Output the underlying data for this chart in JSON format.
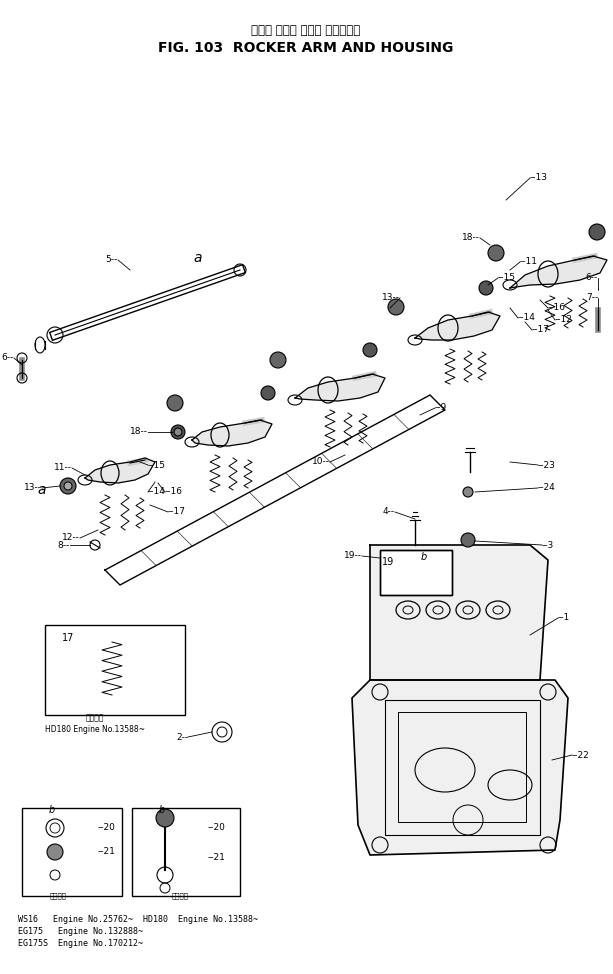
{
  "title_japanese": "ロッカ アーム および ハウジング",
  "title_english": "FIG. 103  ROCKER ARM AND HOUSING",
  "bg_color": "#ffffff",
  "fig_width": 6.13,
  "fig_height": 9.74,
  "bottom_text": [
    "WS16   Engine No.25762~  HD180  Engine No.13588~",
    "EG175   Engine No.132888~",
    "EG175S  Engine No.170212~"
  ],
  "inset1_caption": "HD180 Engine No.13588~"
}
